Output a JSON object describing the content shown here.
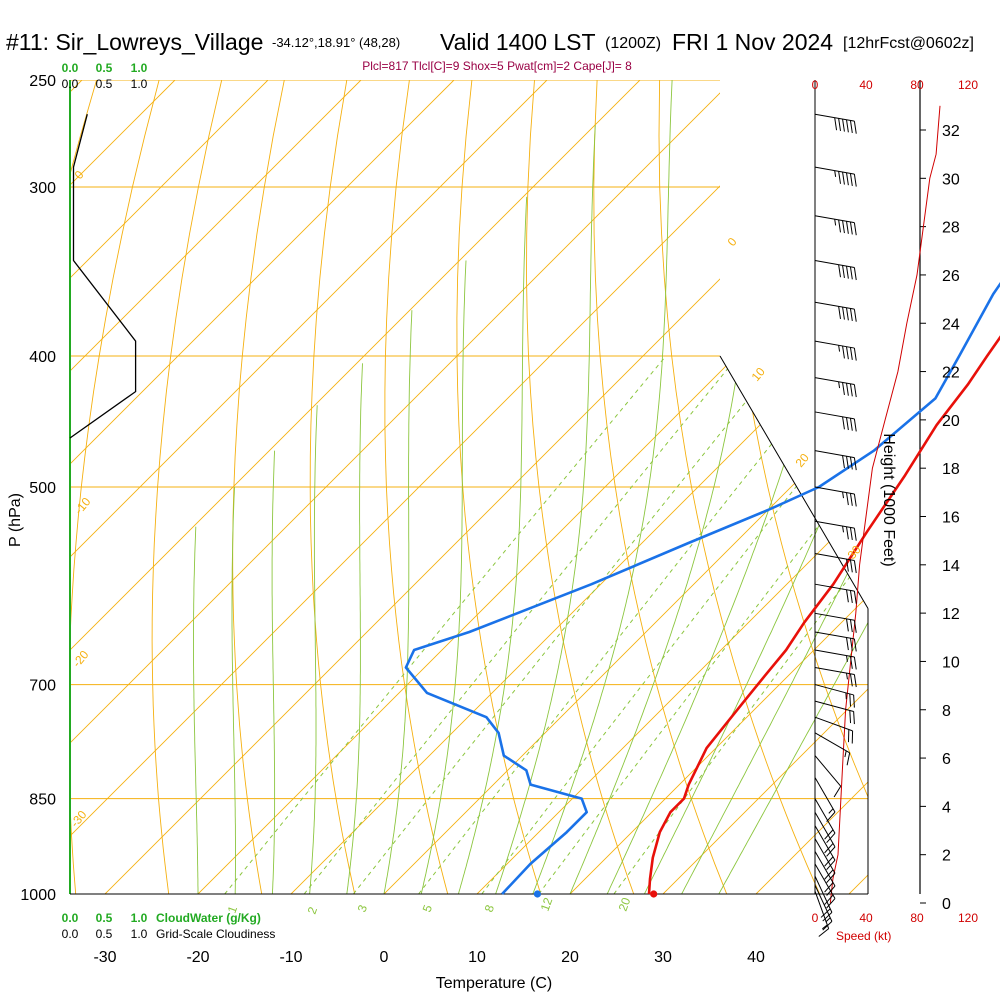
{
  "header": {
    "station": "#11: Sir_Lowreys_Village",
    "coords": "-34.12°,18.91° (48,28)",
    "valid": "Valid 1400 LST",
    "zulu": "(1200Z)",
    "date": "FRI 1 Nov 2024",
    "fcst": "[12hrFcst@0602z]"
  },
  "indices": "Plcl=817 Tlcl[C]=9 Shox=5 Pwat[cm]=2 Cape[J]= 8",
  "colors": {
    "isotherm": "#f5b010",
    "dry_adiabat": "#f5b010",
    "moist_adiabat": "#8cc63f",
    "mixing_ratio": "#8cc63f",
    "temperature": "#e8100a",
    "dewpoint": "#1a72e8",
    "cloud": "#000000",
    "wind": "#000000",
    "speed": "#d00000",
    "cloud_scale_green": "#22aa22",
    "indices": "#990044"
  },
  "chart_data": [
    {
      "type": "line",
      "title": "",
      "xlabel": "Temperature (C)",
      "ylabel": "P (hPa)",
      "xlim": [
        -35,
        45
      ],
      "pressure_levels": [
        250,
        300,
        400,
        500,
        700,
        850,
        1000
      ],
      "x_ticks": [
        -30,
        -20,
        -10,
        0,
        10,
        20,
        30,
        40
      ],
      "isotherm_labels": [
        "0",
        "10",
        "20",
        "30",
        "0",
        "-10",
        "-20",
        "-30"
      ],
      "mixing_ratio_labels": [
        "1",
        "2",
        "3",
        "5",
        "8",
        "12",
        "20"
      ],
      "series": [
        {
          "name": "",
          "role": "temperature",
          "points": [
            [
              0,
              265
            ],
            [
              1,
              283
            ],
            [
              2,
              302
            ],
            [
              4,
              333
            ],
            [
              5,
              360
            ],
            [
              7,
              400
            ],
            [
              8,
              420
            ],
            [
              9,
              450
            ],
            [
              11,
              490
            ],
            [
              13,
              540
            ],
            [
              15,
              590
            ],
            [
              16,
              630
            ],
            [
              17,
              660
            ],
            [
              17.5,
              690
            ],
            [
              18,
              720
            ],
            [
              19,
              780
            ],
            [
              21,
              830
            ],
            [
              22,
              850
            ],
            [
              22,
              870
            ],
            [
              23,
              900
            ],
            [
              25,
              940
            ],
            [
              27,
              975
            ],
            [
              28.5,
              1000
            ]
          ]
        },
        {
          "name": "",
          "role": "dewpoint",
          "points": [
            [
              -4.5,
              265
            ],
            [
              -3,
              292
            ],
            [
              -1,
              325
            ],
            [
              1,
              360
            ],
            [
              4,
              400
            ],
            [
              6,
              430
            ],
            [
              5,
              470
            ],
            [
              3,
              500
            ],
            [
              0,
              520
            ],
            [
              -5,
              550
            ],
            [
              -11,
              590
            ],
            [
              -19,
              640
            ],
            [
              -23,
              660
            ],
            [
              -22,
              680
            ],
            [
              -17,
              710
            ],
            [
              -8,
              740
            ],
            [
              -5,
              760
            ],
            [
              -2,
              790
            ],
            [
              2,
              810
            ],
            [
              4,
              830
            ],
            [
              11,
              850
            ],
            [
              13,
              870
            ],
            [
              13,
              900
            ],
            [
              12.5,
              950
            ],
            [
              12.7,
              1000
            ]
          ]
        },
        {
          "name": "",
          "role": "parcel-start",
          "points": [
            [
              16.5,
              1000
            ],
            [
              29,
              1000
            ]
          ]
        }
      ]
    },
    {
      "type": "line",
      "title": "",
      "xlabel": "Grid-Scale Cloudiness",
      "x_ticks": [
        "0.0",
        "0.5",
        "1.0"
      ],
      "series": [
        {
          "name": "",
          "role": "cloudiness",
          "points": [
            [
              0.25,
              265
            ],
            [
              0.05,
              290
            ],
            [
              0.05,
              340
            ],
            [
              0.95,
              390
            ],
            [
              0.95,
              425
            ],
            [
              0,
              460
            ]
          ]
        }
      ]
    },
    {
      "type": "line",
      "title": "",
      "xlabel": "CloudWater (g/Kg)",
      "x_ticks": [
        "0.0",
        "0.5",
        "1.0"
      ],
      "series": []
    },
    {
      "type": "line",
      "title": "",
      "xlabel": "Speed (kt)",
      "ylabel": "Height (1000 Feet)",
      "x_ticks": [
        0,
        40,
        80,
        120
      ],
      "height_ticks": [
        0,
        2,
        4,
        6,
        8,
        10,
        12,
        14,
        16,
        18,
        20,
        22,
        24,
        26,
        28,
        30,
        32
      ],
      "series": [
        {
          "name": "",
          "role": "wind-speed",
          "points": [
            [
              12,
              0
            ],
            [
              14,
              1
            ],
            [
              18,
              2
            ],
            [
              20,
              4
            ],
            [
              22,
              6
            ],
            [
              24,
              8
            ],
            [
              28,
              10
            ],
            [
              32,
              12
            ],
            [
              35,
              14
            ],
            [
              40,
              16
            ],
            [
              45,
              18
            ],
            [
              55,
              20
            ],
            [
              65,
              22
            ],
            [
              72,
              24
            ],
            [
              80,
              26
            ],
            [
              85,
              28
            ],
            [
              90,
              30
            ],
            [
              95,
              31
            ],
            [
              98,
              33
            ]
          ]
        }
      ]
    },
    {
      "type": "table",
      "title": "",
      "role": "wind-barbs",
      "rows": [
        {
          "p": 265,
          "dir": 280,
          "spd": 60
        },
        {
          "p": 290,
          "dir": 280,
          "spd": 55
        },
        {
          "p": 315,
          "dir": 280,
          "spd": 55
        },
        {
          "p": 340,
          "dir": 280,
          "spd": 50
        },
        {
          "p": 365,
          "dir": 280,
          "spd": 50
        },
        {
          "p": 390,
          "dir": 280,
          "spd": 45
        },
        {
          "p": 415,
          "dir": 280,
          "spd": 45
        },
        {
          "p": 440,
          "dir": 280,
          "spd": 40
        },
        {
          "p": 470,
          "dir": 280,
          "spd": 40
        },
        {
          "p": 500,
          "dir": 280,
          "spd": 35
        },
        {
          "p": 530,
          "dir": 280,
          "spd": 35
        },
        {
          "p": 560,
          "dir": 280,
          "spd": 30
        },
        {
          "p": 590,
          "dir": 280,
          "spd": 30
        },
        {
          "p": 620,
          "dir": 280,
          "spd": 30
        },
        {
          "p": 640,
          "dir": 280,
          "spd": 30
        },
        {
          "p": 660,
          "dir": 280,
          "spd": 25
        },
        {
          "p": 680,
          "dir": 280,
          "spd": 25
        },
        {
          "p": 700,
          "dir": 285,
          "spd": 25
        },
        {
          "p": 720,
          "dir": 285,
          "spd": 20
        },
        {
          "p": 740,
          "dir": 290,
          "spd": 20
        },
        {
          "p": 760,
          "dir": 300,
          "spd": 15
        },
        {
          "p": 790,
          "dir": 320,
          "spd": 10
        },
        {
          "p": 820,
          "dir": 330,
          "spd": 15
        },
        {
          "p": 850,
          "dir": 330,
          "spd": 20
        },
        {
          "p": 870,
          "dir": 330,
          "spd": 20
        },
        {
          "p": 890,
          "dir": 330,
          "spd": 20
        },
        {
          "p": 910,
          "dir": 330,
          "spd": 20
        },
        {
          "p": 930,
          "dir": 330,
          "spd": 20
        },
        {
          "p": 950,
          "dir": 330,
          "spd": 20
        },
        {
          "p": 970,
          "dir": 335,
          "spd": 20
        },
        {
          "p": 985,
          "dir": 335,
          "spd": 15
        },
        {
          "p": 995,
          "dir": 340,
          "spd": 15
        }
      ]
    }
  ]
}
